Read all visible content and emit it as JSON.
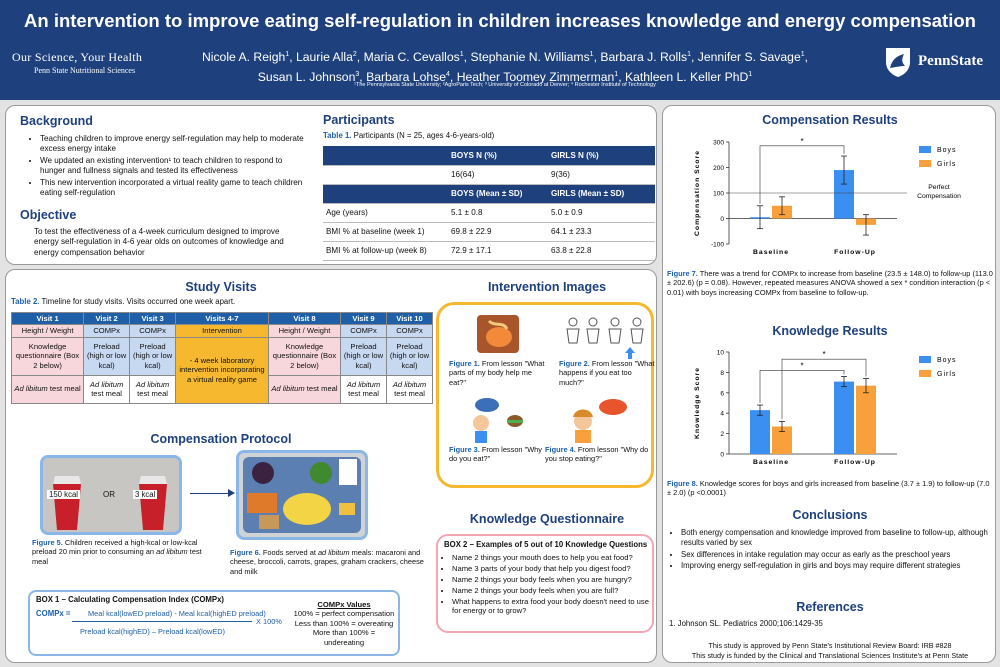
{
  "header": {
    "title": "An intervention to improve eating self-regulation in children increases knowledge and energy compensation",
    "org_line1": "Our Science, Your Health",
    "org_line2": "Penn State Nutritional Sciences",
    "authors": [
      {
        "name": "Nicole A. Reigh",
        "sup": "1"
      },
      {
        "name": "Laurie Alla",
        "sup": "2"
      },
      {
        "name": "Maria C. Cevallos",
        "sup": "1"
      },
      {
        "name": "Stephanie N. Williams",
        "sup": "1"
      },
      {
        "name": "Barbara J. Rolls",
        "sup": "1"
      },
      {
        "name": "Jennifer S. Savage",
        "sup": "1"
      },
      {
        "name": "Susan L. Johnson",
        "sup": "3"
      },
      {
        "name": "Barbara Lohse",
        "sup": "4"
      },
      {
        "name": "Heather Toomey Zimmerman",
        "sup": "1"
      },
      {
        "name": "Kathleen L. Keller PhD",
        "sup": "1"
      }
    ],
    "institutions": "¹The Pennsylvania State University; ²AgroParis Tech; ³ University of Colorado at Denver; ⁴ Rochester Institute of Technology",
    "logo_text": "PennState"
  },
  "background": {
    "heading": "Background",
    "bullets": [
      "Teaching children to improve energy self-regulation may help to moderate excess energy intake",
      "We updated an existing intervention¹ to teach children to respond to hunger and fullness signals and tested its effectiveness",
      "This new intervention incorporated a virtual reality game to teach children eating self-regulation"
    ]
  },
  "objective": {
    "heading": "Objective",
    "text": "To test the effectiveness of a 4-week curriculum designed to improve energy self-regulation in 4-6 year olds on outcomes of knowledge and energy compensation behavior"
  },
  "participants": {
    "heading": "Participants",
    "table_label": "Table 1.",
    "table_caption": "Participants (N = 25, ages 4-6-years-old)",
    "header1": [
      "",
      "BOYS N (%)",
      "GIRLS N (%)"
    ],
    "row_n": [
      "",
      "16(64)",
      "9(36)"
    ],
    "header2": [
      "",
      "BOYS (Mean ± SD)",
      "GIRLS (Mean ± SD)"
    ],
    "rows": [
      [
        "Age (years)",
        "5.1 ± 0.8",
        "5.0 ± 0.9"
      ],
      [
        "BMI % at baseline (week 1)",
        "69.8 ± 22.9",
        "64.1 ± 23.3"
      ],
      [
        "BMI % at follow-up (week 8)",
        "72.9 ± 17.1",
        "63.8 ± 22.8"
      ]
    ]
  },
  "study_visits": {
    "heading": "Study Visits",
    "table_label": "Table 2.",
    "table_caption": "Timeline for study visits. Visits occurred one week apart.",
    "headers": [
      "Visit 1",
      "Visit 2",
      "Visit 3",
      "Visits 4-7",
      "Visit 8",
      "Visit 9",
      "Visit 10"
    ],
    "row1": [
      "Height / Weight",
      "COMPx",
      "COMPx",
      "Intervention",
      "Height / Weight",
      "COMPx",
      "COMPx"
    ],
    "row2": [
      "Knowledge questionnaire (Box 2 below)",
      "Preload (high or low kcal)",
      "Preload (high or low kcal)",
      "- 4 week laboratory intervention incorporating a virtual reality game",
      "Knowledge questionnaire (Box 2 below)",
      "Preload (high or low kcal)",
      "Preload (high or low kcal)"
    ],
    "row3_italic": "Ad libitum",
    "row3_rest": "test meal"
  },
  "compensation_protocol": {
    "heading": "Compensation Protocol",
    "cup1_label": "150 kcal",
    "or_label": "OR",
    "cup2_label": "3 kcal",
    "fig5_label": "Figure 5.",
    "fig5_text": "Children received a high-kcal or low-kcal preload 20 min prior to consuming an",
    "fig5_italic": "ad libitum",
    "fig5_end": "test meal",
    "fig6_label": "Figure 6.",
    "fig6_text": "Foods served at",
    "fig6_italic": "ad libitum",
    "fig6_end": "meals: macaroni and cheese, broccoli, carrots, grapes, graham crackers, cheese and milk"
  },
  "box1": {
    "title": "BOX 1 – Calculating Compensation Index (COMPx)",
    "formula_lhs": "COMPx =",
    "numerator": "Meal kcal(lowED preload) - Meal kcal(highED preload)",
    "denominator": "Preload kcal(highED) – Preload kcal(lowED)",
    "multiplier": "X 100%",
    "values_title": "COMPx Values",
    "values": [
      "100% = perfect compensation",
      "Less than 100% = overeating",
      "More than 100% = undereating"
    ]
  },
  "intervention_images": {
    "heading": "Intervention Images",
    "figs": [
      {
        "label": "Figure 1.",
        "text": "From lesson \"What parts of my body help me eat?\""
      },
      {
        "label": "Figure 2.",
        "text": "From lesson \"What happens if you eat too much?\""
      },
      {
        "label": "Figure 3.",
        "text": "From lesson \"Why do you eat?\""
      },
      {
        "label": "Figure 4.",
        "text": "From lesson \"Why do you stop eating?\""
      }
    ]
  },
  "knowledge_questionnaire": {
    "heading": "Knowledge Questionnaire",
    "box_title": "BOX 2 – Examples of 5 out of 10 Knowledge Questions",
    "questions": [
      "Name 2 things your mouth does to help you eat food?",
      "Name 3 parts of your body that help you digest food?",
      "Name 2 things your body feels when you are hungry?",
      "Name 2 things your body feels when you are full?",
      "What happens to extra food your body doesn't need to use for energy or to grow?"
    ]
  },
  "compensation_results": {
    "heading": "Compensation Results",
    "fig7_label": "Figure 7.",
    "fig7_text": "There was a trend for COMPx to increase from baseline (23.5 ± 148.0) to follow-up (113.0 ± 202.6) (p = 0.08). However, repeated measures ANOVA showed a sex * condition interaction (p < 0.01) with boys increasing COMPx from baseline to follow-up.",
    "perfect_label": "Perfect Compensation",
    "sig_marker": "*"
  },
  "knowledge_results": {
    "heading": "Knowledge Results",
    "fig8_label": "Figure 8.",
    "fig8_text": "Knowledge scores for boys and girls increased from baseline (3.7 ± 1.9) to follow-up (7.0 ± 2.0) (p <0.0001)",
    "sig_markers": [
      "*",
      "*"
    ]
  },
  "conclusions": {
    "heading": "Conclusions",
    "bullets": [
      "Both energy compensation and knowledge improved from baseline to follow-up, although results varied by sex",
      "Sex differences in intake regulation may occur as early as the preschool years",
      "Improving energy self-regulation in girls and boys may require different strategies"
    ]
  },
  "references": {
    "heading": "References",
    "items": [
      "1.  Johnson SL. Pediatrics 2000;106:1429-35"
    ],
    "irb": "This study is approved by Penn State's Institutional Review Board: IRB #828",
    "funding": "This study is funded by the Clinical and Translational Sciences Institute's at Penn State"
  },
  "colors": {
    "navy": "#1e407c",
    "boys": "#3b8ff0",
    "girls": "#f7a03c",
    "intervention": "#f5b82e"
  },
  "chart_data": [
    {
      "type": "bar",
      "title": "",
      "ylabel": "Compensation Score",
      "categories": [
        "Baseline",
        "Follow-Up"
      ],
      "series": [
        {
          "name": "Boys",
          "values": [
            5,
            190
          ],
          "errors": [
            45,
            55
          ]
        },
        {
          "name": "Girls",
          "values": [
            50,
            -25
          ],
          "errors": [
            35,
            40
          ]
        }
      ],
      "ylim": [
        -100,
        300
      ],
      "yticks": [
        -100,
        0,
        100,
        200,
        300
      ],
      "reference_line": 100,
      "legend": "top-right",
      "grid": false
    },
    {
      "type": "bar",
      "title": "",
      "ylabel": "Knowledge Score",
      "categories": [
        "Baseline",
        "Follow-Up"
      ],
      "series": [
        {
          "name": "Boys",
          "values": [
            4.3,
            7.1
          ],
          "errors": [
            0.5,
            0.5
          ]
        },
        {
          "name": "Girls",
          "values": [
            2.7,
            6.7
          ],
          "errors": [
            0.5,
            0.7
          ]
        }
      ],
      "ylim": [
        0,
        10
      ],
      "yticks": [
        0,
        2,
        4,
        6,
        8,
        10
      ],
      "legend": "top-right",
      "grid": false
    }
  ]
}
